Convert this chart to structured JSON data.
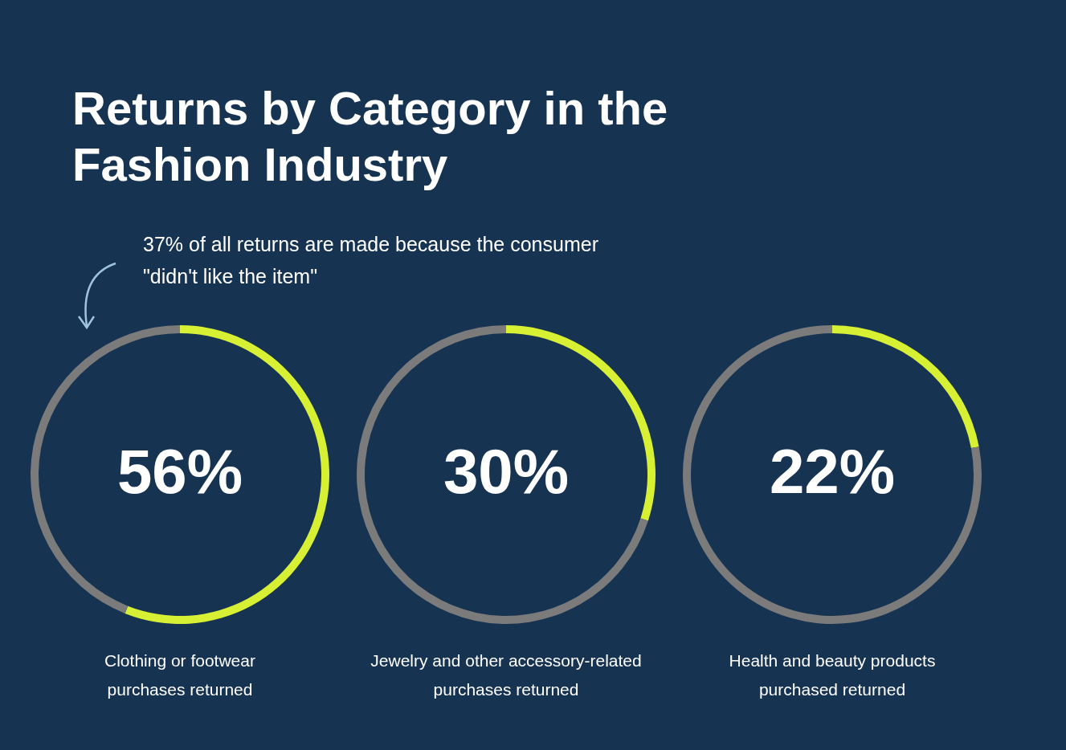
{
  "chart_data": [
    {
      "type": "other",
      "title": "Returns by Category in the Fashion Industry",
      "annotations": [
        "37% of all returns are made because the consumer \"didn't like the item\""
      ]
    },
    {
      "type": "donut",
      "categories": [
        null,
        null
      ],
      "values": [
        56,
        44
      ],
      "colors": [
        "#d7f034",
        "#7b7b7b"
      ],
      "value_labels": [
        "56%",
        null
      ],
      "xlabel": "Clothing or footwear purchases returned"
    },
    {
      "type": "donut",
      "categories": [
        null,
        null
      ],
      "values": [
        30,
        70
      ],
      "colors": [
        "#d7f034",
        "#7b7b7b"
      ],
      "value_labels": [
        "30%",
        null
      ],
      "xlabel": "Jewelry and other accessory-related purchases returned"
    },
    {
      "type": "donut",
      "categories": [
        null,
        null
      ],
      "values": [
        22,
        78
      ],
      "colors": [
        "#d7f034",
        "#7b7b7b"
      ],
      "value_labels": [
        "22%",
        null
      ],
      "xlabel": "Health and beauty products purchased returned"
    }
  ]
}
